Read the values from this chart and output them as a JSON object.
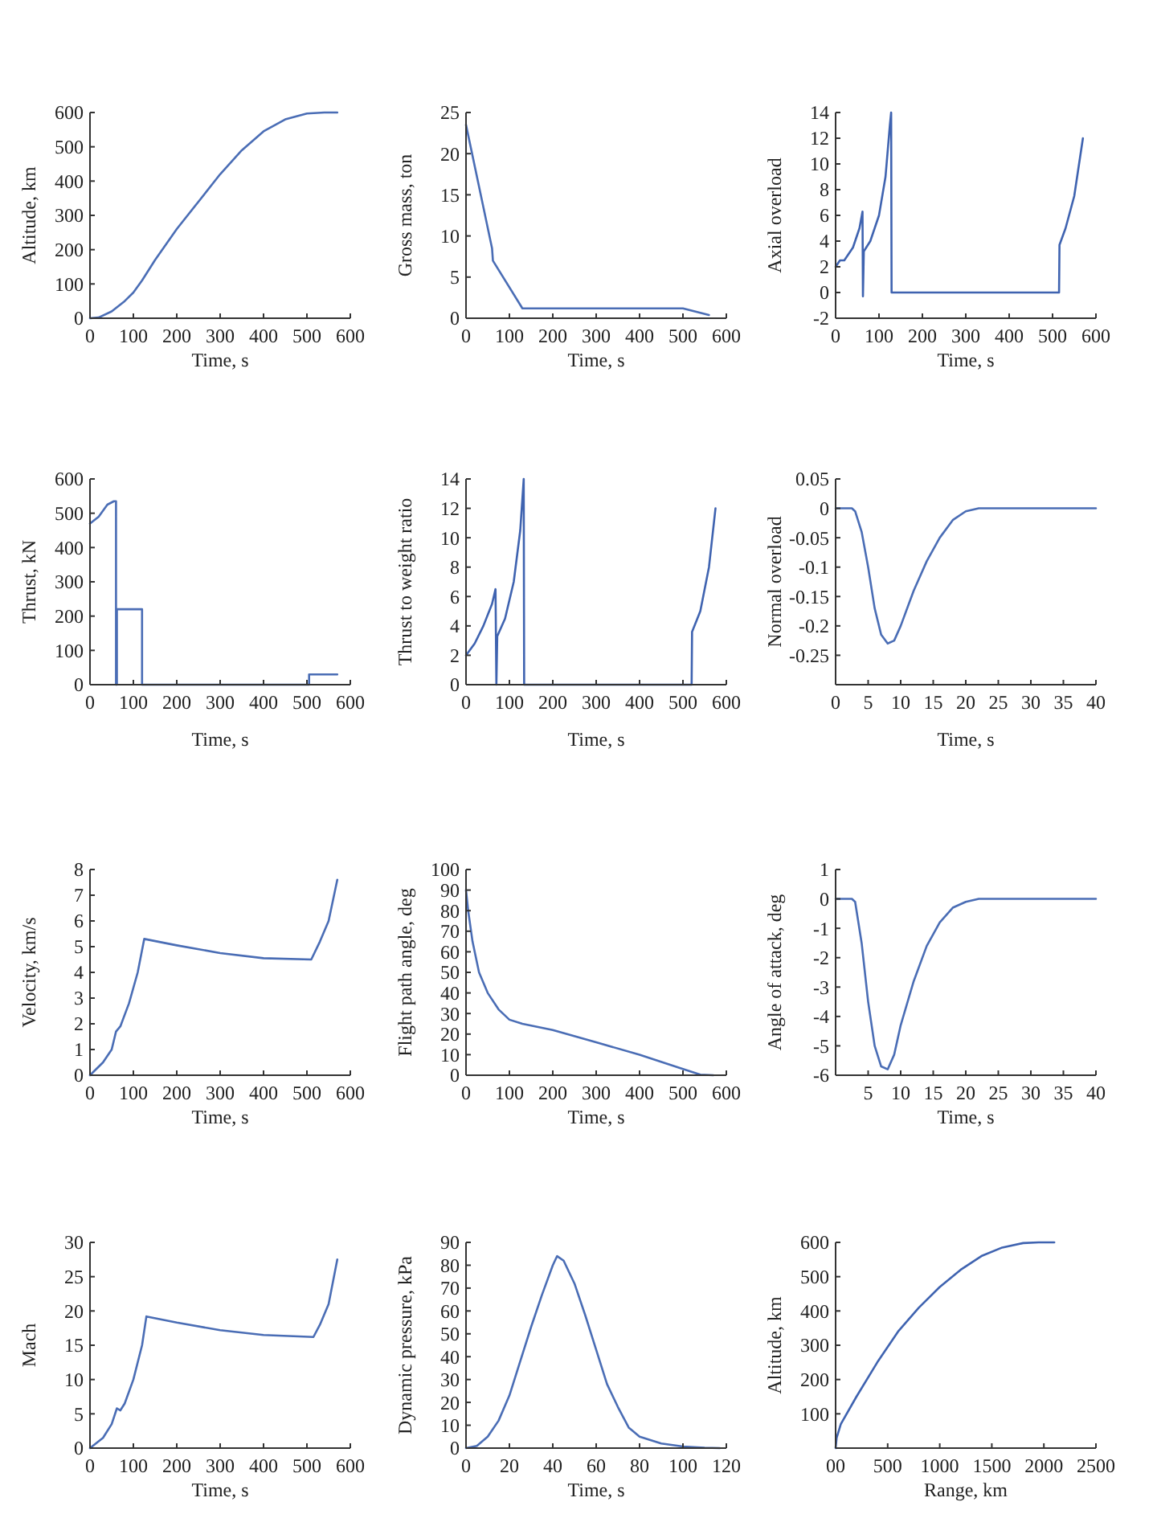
{
  "chart_data": [
    {
      "type": "line",
      "xlabel": "Time, s",
      "ylabel": "Altitude, km",
      "x": [
        0,
        20,
        50,
        80,
        100,
        120,
        150,
        200,
        250,
        300,
        350,
        400,
        450,
        500,
        540,
        570
      ],
      "xlim": [
        0,
        600
      ],
      "xticks": [
        0,
        100,
        200,
        300,
        400,
        500,
        600
      ],
      "ylim": [
        0,
        600
      ],
      "yticks": [
        0,
        100,
        200,
        300,
        400,
        500,
        600
      ],
      "series": [
        {
          "color": "#4a6db5",
          "values": [
            0,
            2,
            20,
            50,
            75,
            110,
            170,
            260,
            340,
            420,
            490,
            545,
            580,
            597,
            600,
            600
          ]
        }
      ]
    },
    {
      "type": "line",
      "xlabel": "Time, s",
      "ylabel": "Gross mass, ton",
      "x": [
        0,
        60,
        62,
        130,
        500,
        560
      ],
      "xlim": [
        0,
        600
      ],
      "xticks": [
        0,
        100,
        200,
        300,
        400,
        500,
        600
      ],
      "ylim": [
        0,
        25
      ],
      "yticks": [
        0,
        5,
        10,
        15,
        20,
        25
      ],
      "series": [
        {
          "color": "#4a6db5",
          "values": [
            23.5,
            8.5,
            7,
            1.2,
            1.2,
            0.4
          ]
        }
      ]
    },
    {
      "type": "line",
      "xlabel": "Time, s",
      "ylabel": "Axial overload",
      "x": [
        0,
        10,
        20,
        40,
        55,
        62,
        63,
        65,
        80,
        100,
        115,
        125,
        128,
        129,
        515,
        516,
        530,
        550,
        570
      ],
      "xlim": [
        0,
        600
      ],
      "xticks": [
        0,
        100,
        200,
        300,
        400,
        500,
        600
      ],
      "ylim": [
        -2,
        14
      ],
      "yticks": [
        {
          "value": -2,
          "label": "-2"
        },
        0,
        2,
        4,
        6,
        8,
        10,
        12,
        14
      ],
      "series": [
        {
          "color": "#3f63b0",
          "values": [
            2,
            2.5,
            2.5,
            3.5,
            5,
            6.3,
            -0.3,
            3.2,
            4,
            6,
            9,
            13,
            14,
            0,
            0,
            3.7,
            5,
            7.5,
            12
          ]
        }
      ]
    },
    {
      "type": "line",
      "xlabel": "Time, s",
      "ylabel": "Thrust, kN",
      "x": [
        0,
        20,
        40,
        55,
        60,
        60,
        62,
        62,
        120,
        120,
        505,
        505,
        570
      ],
      "xlim": [
        0,
        600
      ],
      "xticks": [
        0,
        100,
        200,
        300,
        400,
        500,
        600
      ],
      "ylim": [
        0,
        600
      ],
      "yticks": [
        0,
        100,
        200,
        300,
        400,
        500,
        600
      ],
      "series": [
        {
          "color": "#4a6db5",
          "values": [
            470,
            490,
            525,
            535,
            535,
            0,
            0,
            220,
            220,
            0,
            0,
            30,
            30
          ]
        }
      ]
    },
    {
      "type": "line",
      "xlabel": "Time, s",
      "ylabel": "Thrust to weight ratio",
      "x": [
        0,
        20,
        40,
        60,
        68,
        70,
        72,
        90,
        110,
        125,
        133,
        134,
        520,
        521,
        540,
        560,
        575
      ],
      "xlim": [
        0,
        600
      ],
      "xticks": [
        0,
        100,
        200,
        300,
        400,
        500,
        600
      ],
      "ylim": [
        0,
        14
      ],
      "yticks": [
        0,
        2,
        4,
        6,
        8,
        10,
        12,
        14
      ],
      "series": [
        {
          "color": "#3f63b0",
          "values": [
            2,
            2.8,
            4,
            5.5,
            6.5,
            0,
            3.3,
            4.5,
            7,
            10.5,
            14,
            0,
            0,
            3.6,
            5,
            8,
            12
          ]
        }
      ]
    },
    {
      "type": "line",
      "xlabel": "Time, s",
      "ylabel": "Normal overload",
      "x": [
        0,
        2.5,
        3,
        4,
        5,
        6,
        7,
        8,
        9,
        10,
        12,
        14,
        16,
        18,
        20,
        22,
        24,
        40
      ],
      "xlim": [
        0,
        40
      ],
      "xticks": [
        0,
        5,
        10,
        15,
        20,
        25,
        30,
        35,
        40
      ],
      "ylim": [
        -0.3,
        0.05
      ],
      "yticks": [
        0.05,
        0,
        {
          "value": -0.05,
          "label": "-0.05"
        },
        {
          "value": -0.1,
          "label": "-0.1"
        },
        {
          "value": -0.15,
          "label": "-0.15"
        },
        {
          "value": -0.2,
          "label": "-0.2"
        },
        {
          "value": -0.25,
          "label": "-0.25"
        }
      ],
      "series": [
        {
          "color": "#4a6db5",
          "values": [
            0,
            0,
            -0.005,
            -0.04,
            -0.1,
            -0.17,
            -0.215,
            -0.23,
            -0.225,
            -0.2,
            -0.14,
            -0.09,
            -0.05,
            -0.02,
            -0.005,
            0,
            0,
            0
          ]
        }
      ]
    },
    {
      "type": "line",
      "xlabel": "Time, s",
      "ylabel": "Velocity, km/s",
      "x": [
        0,
        30,
        50,
        60,
        70,
        90,
        110,
        125,
        200,
        300,
        400,
        510,
        530,
        550,
        570
      ],
      "xlim": [
        0,
        600
      ],
      "xticks": [
        0,
        100,
        200,
        300,
        400,
        500,
        600
      ],
      "ylim": [
        0,
        8
      ],
      "yticks": [
        0,
        1,
        2,
        3,
        4,
        5,
        6,
        7,
        8
      ],
      "series": [
        {
          "color": "#4a6db5",
          "values": [
            0,
            0.5,
            1,
            1.7,
            1.9,
            2.8,
            4,
            5.3,
            5.05,
            4.75,
            4.55,
            4.5,
            5.2,
            6,
            7.6
          ]
        }
      ]
    },
    {
      "type": "line",
      "xlabel": "Time, s",
      "ylabel": "Flight path angle, deg",
      "x": [
        0,
        5,
        15,
        30,
        50,
        75,
        100,
        130,
        200,
        300,
        400,
        500,
        540,
        570
      ],
      "xlim": [
        0,
        600
      ],
      "xticks": [
        0,
        100,
        200,
        300,
        400,
        500,
        600
      ],
      "ylim": [
        0,
        100
      ],
      "yticks": [
        0,
        10,
        20,
        30,
        40,
        50,
        60,
        70,
        80,
        90,
        100
      ],
      "series": [
        {
          "color": "#4a6db5",
          "values": [
            90,
            80,
            65,
            50,
            40,
            32,
            27,
            25,
            22,
            16,
            10,
            3,
            0.3,
            0
          ]
        }
      ]
    },
    {
      "type": "line",
      "xlabel": "Time, s",
      "ylabel": "Angle of attack, deg",
      "x": [
        0,
        2.5,
        3,
        4,
        5,
        6,
        7,
        8,
        9,
        10,
        12,
        14,
        16,
        18,
        20,
        22,
        40
      ],
      "xlim": [
        0,
        40
      ],
      "xticks": [
        5,
        10,
        15,
        20,
        25,
        30,
        35,
        40
      ],
      "ylim": [
        -6,
        1
      ],
      "yticks": [
        {
          "value": -6,
          "label": "-6"
        },
        {
          "value": -5,
          "label": "-5"
        },
        {
          "value": -4,
          "label": "-4"
        },
        {
          "value": -3,
          "label": "-3"
        },
        {
          "value": -2,
          "label": "-2"
        },
        {
          "value": -1,
          "label": "-1"
        },
        0,
        1
      ],
      "series": [
        {
          "color": "#4a6db5",
          "values": [
            0,
            0,
            -0.1,
            -1.5,
            -3.5,
            -5,
            -5.7,
            -5.8,
            -5.3,
            -4.3,
            -2.8,
            -1.6,
            -0.8,
            -0.3,
            -0.1,
            0,
            0
          ]
        }
      ]
    },
    {
      "type": "line",
      "xlabel": "Time, s",
      "ylabel": "Mach",
      "x": [
        0,
        30,
        50,
        62,
        70,
        80,
        100,
        120,
        130,
        200,
        300,
        400,
        515,
        530,
        550,
        570
      ],
      "xlim": [
        0,
        600
      ],
      "xticks": [
        0,
        100,
        200,
        300,
        400,
        500,
        600
      ],
      "ylim": [
        0,
        30
      ],
      "yticks": [
        0,
        5,
        10,
        15,
        20,
        25,
        30
      ],
      "series": [
        {
          "color": "#4a6db5",
          "values": [
            0,
            1.5,
            3.5,
            5.8,
            5.5,
            6.5,
            10,
            15,
            19.2,
            18.3,
            17.2,
            16.5,
            16.2,
            18,
            21,
            27.5
          ]
        }
      ]
    },
    {
      "type": "line",
      "xlabel": "Time, s",
      "ylabel": "Dynamic pressure, kPa",
      "x": [
        0,
        5,
        10,
        15,
        20,
        25,
        30,
        35,
        40,
        42,
        45,
        50,
        55,
        60,
        65,
        70,
        75,
        80,
        90,
        100,
        110,
        117
      ],
      "xlim": [
        0,
        120
      ],
      "xticks": [
        0,
        20,
        40,
        60,
        80,
        100,
        120
      ],
      "ylim": [
        0,
        90
      ],
      "yticks": [
        0,
        10,
        20,
        30,
        40,
        50,
        60,
        70,
        80,
        90
      ],
      "series": [
        {
          "color": "#4a6db5",
          "values": [
            0,
            1,
            5,
            12,
            23,
            38,
            53,
            67,
            80,
            84,
            82,
            72,
            58,
            43,
            28,
            18,
            9,
            5,
            2,
            0.7,
            0.2,
            0
          ]
        }
      ]
    },
    {
      "type": "line",
      "xlabel": "Range, km",
      "ylabel": "Altitude, km",
      "x": [
        0,
        10,
        50,
        200,
        400,
        600,
        800,
        1000,
        1200,
        1400,
        1600,
        1800,
        1950,
        2100
      ],
      "xlim": [
        0,
        2500
      ],
      "xticks": [
        {
          "value": 0,
          "label": "00"
        },
        500,
        1000,
        1500,
        2000,
        2500
      ],
      "ylim": [
        0,
        600
      ],
      "yticks": [
        100,
        200,
        300,
        400,
        500,
        600
      ],
      "series": [
        {
          "color": "#3f63b0",
          "values": [
            0,
            30,
            70,
            150,
            250,
            340,
            410,
            470,
            520,
            560,
            585,
            598,
            600,
            600
          ]
        }
      ]
    }
  ]
}
